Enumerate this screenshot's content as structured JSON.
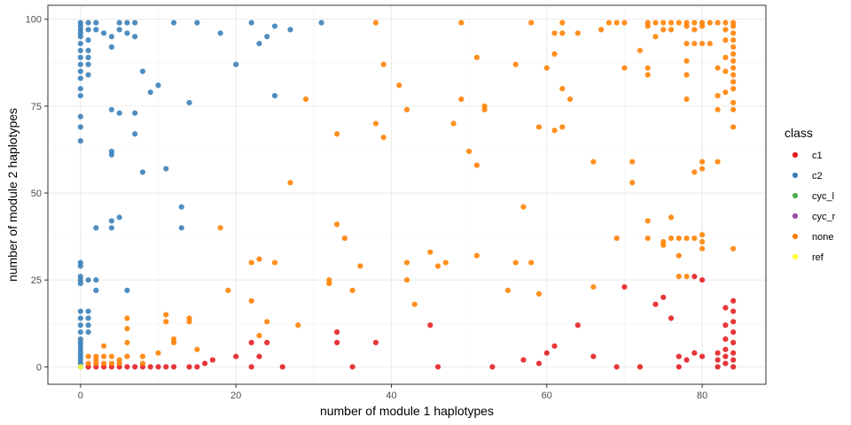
{
  "chart_data": {
    "type": "scatter",
    "xlabel": "number of module 1 haplotypes",
    "ylabel": "number of module 2 haplotypes",
    "xlim": [
      -4.2,
      88.2
    ],
    "ylim": [
      -5,
      104
    ],
    "x_ticks": [
      0,
      20,
      40,
      60,
      80
    ],
    "y_ticks": [
      0,
      25,
      50,
      75,
      100
    ],
    "x_tick_labels": [
      "0",
      "20",
      "40",
      "60",
      "80"
    ],
    "y_tick_labels": [
      "0",
      "25",
      "50",
      "75",
      "100"
    ],
    "grid": true,
    "legend": {
      "title": "class",
      "position": "right"
    },
    "series": [
      {
        "name": "c1",
        "color": "#E41A1C",
        "points": [
          [
            1,
            0
          ],
          [
            2,
            0
          ],
          [
            3,
            0
          ],
          [
            4,
            0
          ],
          [
            5,
            0
          ],
          [
            6,
            0
          ],
          [
            7,
            0
          ],
          [
            8,
            0
          ],
          [
            9,
            0
          ],
          [
            10,
            0
          ],
          [
            11,
            0
          ],
          [
            12,
            0
          ],
          [
            14,
            0
          ],
          [
            15,
            0
          ],
          [
            16,
            1
          ],
          [
            17,
            2
          ],
          [
            20,
            3
          ],
          [
            22,
            7
          ],
          [
            22,
            0
          ],
          [
            23,
            3
          ],
          [
            24,
            7
          ],
          [
            26,
            0
          ],
          [
            33,
            10
          ],
          [
            33,
            7
          ],
          [
            35,
            0
          ],
          [
            38,
            7
          ],
          [
            45,
            12
          ],
          [
            46,
            0
          ],
          [
            53,
            0
          ],
          [
            57,
            2
          ],
          [
            59,
            1
          ],
          [
            60,
            4
          ],
          [
            61,
            6
          ],
          [
            64,
            12
          ],
          [
            66,
            3
          ],
          [
            69,
            0
          ],
          [
            70,
            23
          ],
          [
            72,
            0
          ],
          [
            74,
            18
          ],
          [
            75,
            20
          ],
          [
            76,
            14
          ],
          [
            77,
            3
          ],
          [
            77,
            0
          ],
          [
            78,
            2
          ],
          [
            79,
            26
          ],
          [
            79,
            4
          ],
          [
            80,
            25
          ],
          [
            80,
            3
          ],
          [
            82,
            0
          ],
          [
            82,
            2
          ],
          [
            82,
            4
          ],
          [
            83,
            17
          ],
          [
            83,
            12
          ],
          [
            83,
            8
          ],
          [
            83,
            5
          ],
          [
            83,
            3
          ],
          [
            83,
            1
          ],
          [
            84,
            19
          ],
          [
            84,
            16
          ],
          [
            84,
            13
          ],
          [
            84,
            10
          ],
          [
            84,
            7
          ],
          [
            84,
            4
          ],
          [
            84,
            2
          ],
          [
            84,
            0
          ]
        ]
      },
      {
        "name": "c2",
        "color": "#377EB8",
        "points": [
          [
            0,
            99
          ],
          [
            0,
            98
          ],
          [
            0,
            97
          ],
          [
            0,
            96
          ],
          [
            0,
            95
          ],
          [
            0,
            93
          ],
          [
            0,
            91
          ],
          [
            0,
            89
          ],
          [
            0,
            87
          ],
          [
            0,
            85
          ],
          [
            0,
            83
          ],
          [
            0,
            80
          ],
          [
            0,
            78
          ],
          [
            0,
            72
          ],
          [
            0,
            69
          ],
          [
            0,
            65
          ],
          [
            1,
            99
          ],
          [
            1,
            97
          ],
          [
            1,
            94
          ],
          [
            1,
            91
          ],
          [
            1,
            89
          ],
          [
            1,
            87
          ],
          [
            1,
            84
          ],
          [
            2,
            99
          ],
          [
            2,
            97
          ],
          [
            3,
            96
          ],
          [
            4,
            95
          ],
          [
            4,
            92
          ],
          [
            5,
            99
          ],
          [
            5,
            97
          ],
          [
            6,
            99
          ],
          [
            6,
            96
          ],
          [
            7,
            99
          ],
          [
            7,
            95
          ],
          [
            8,
            85
          ],
          [
            9,
            79
          ],
          [
            10,
            81
          ],
          [
            12,
            99
          ],
          [
            15,
            99
          ],
          [
            18,
            96
          ],
          [
            20,
            87
          ],
          [
            22,
            99
          ],
          [
            23,
            93
          ],
          [
            24,
            95
          ],
          [
            25,
            98
          ],
          [
            25,
            78
          ],
          [
            27,
            97
          ],
          [
            31,
            99
          ],
          [
            4,
            74
          ],
          [
            5,
            73
          ],
          [
            7,
            73
          ],
          [
            7,
            67
          ],
          [
            4,
            62
          ],
          [
            4,
            61
          ],
          [
            8,
            56
          ],
          [
            11,
            57
          ],
          [
            14,
            76
          ],
          [
            13,
            46
          ],
          [
            13,
            40
          ],
          [
            5,
            43
          ],
          [
            4,
            42
          ],
          [
            4,
            40
          ],
          [
            2,
            40
          ],
          [
            0,
            30
          ],
          [
            0,
            29
          ],
          [
            0,
            26
          ],
          [
            0,
            25
          ],
          [
            0,
            24
          ],
          [
            1,
            25
          ],
          [
            2,
            25
          ],
          [
            2,
            22
          ],
          [
            6,
            22
          ],
          [
            0,
            16
          ],
          [
            1,
            16
          ],
          [
            0,
            14
          ],
          [
            1,
            14
          ],
          [
            0,
            12
          ],
          [
            1,
            12
          ],
          [
            0,
            10
          ],
          [
            1,
            10
          ],
          [
            0,
            8
          ],
          [
            0,
            7
          ],
          [
            0,
            6
          ],
          [
            0,
            5
          ],
          [
            0,
            4
          ],
          [
            0,
            3
          ],
          [
            0,
            2
          ],
          [
            0,
            1
          ],
          [
            0,
            0
          ]
        ]
      },
      {
        "name": "cyc_l",
        "color": "#4DAF4A",
        "points": []
      },
      {
        "name": "cyc_r",
        "color": "#984EA3",
        "points": []
      },
      {
        "name": "none",
        "color": "#FF7F00",
        "points": [
          [
            1,
            3
          ],
          [
            1,
            1
          ],
          [
            2,
            3
          ],
          [
            2,
            2
          ],
          [
            2,
            1
          ],
          [
            3,
            6
          ],
          [
            3,
            3
          ],
          [
            3,
            1
          ],
          [
            4,
            3
          ],
          [
            4,
            1
          ],
          [
            5,
            2
          ],
          [
            5,
            1
          ],
          [
            6,
            14
          ],
          [
            6,
            11
          ],
          [
            6,
            7
          ],
          [
            6,
            3
          ],
          [
            8,
            3
          ],
          [
            8,
            1
          ],
          [
            10,
            4
          ],
          [
            11,
            15
          ],
          [
            11,
            13
          ],
          [
            12,
            8
          ],
          [
            12,
            7
          ],
          [
            14,
            14
          ],
          [
            14,
            13
          ],
          [
            15,
            5
          ],
          [
            18,
            40
          ],
          [
            19,
            22
          ],
          [
            22,
            30
          ],
          [
            22,
            19
          ],
          [
            23,
            31
          ],
          [
            23,
            9
          ],
          [
            24,
            13
          ],
          [
            25,
            30
          ],
          [
            28,
            12
          ],
          [
            29,
            77
          ],
          [
            27,
            53
          ],
          [
            32,
            25
          ],
          [
            32,
            24
          ],
          [
            33,
            67
          ],
          [
            33,
            41
          ],
          [
            34,
            37
          ],
          [
            35,
            22
          ],
          [
            36,
            29
          ],
          [
            38,
            99
          ],
          [
            38,
            70
          ],
          [
            39,
            87
          ],
          [
            39,
            66
          ],
          [
            41,
            81
          ],
          [
            42,
            74
          ],
          [
            42,
            30
          ],
          [
            42,
            25
          ],
          [
            43,
            18
          ],
          [
            45,
            33
          ],
          [
            46,
            29
          ],
          [
            47,
            30
          ],
          [
            48,
            70
          ],
          [
            49,
            99
          ],
          [
            49,
            77
          ],
          [
            50,
            62
          ],
          [
            51,
            89
          ],
          [
            51,
            58
          ],
          [
            51,
            32
          ],
          [
            52,
            75
          ],
          [
            52,
            74
          ],
          [
            55,
            22
          ],
          [
            56,
            87
          ],
          [
            56,
            30
          ],
          [
            57,
            46
          ],
          [
            58,
            99
          ],
          [
            58,
            30
          ],
          [
            59,
            69
          ],
          [
            59,
            21
          ],
          [
            60,
            86
          ],
          [
            61,
            96
          ],
          [
            61,
            90
          ],
          [
            61,
            68
          ],
          [
            62,
            99
          ],
          [
            62,
            96
          ],
          [
            62,
            80
          ],
          [
            62,
            69
          ],
          [
            63,
            77
          ],
          [
            64,
            96
          ],
          [
            66,
            59
          ],
          [
            66,
            23
          ],
          [
            67,
            97
          ],
          [
            68,
            99
          ],
          [
            69,
            99
          ],
          [
            69,
            37
          ],
          [
            70,
            99
          ],
          [
            70,
            86
          ],
          [
            71,
            59
          ],
          [
            71,
            53
          ],
          [
            72,
            91
          ],
          [
            73,
            99
          ],
          [
            73,
            98
          ],
          [
            73,
            86
          ],
          [
            73,
            84
          ],
          [
            73,
            42
          ],
          [
            73,
            37
          ],
          [
            74,
            99
          ],
          [
            74,
            95
          ],
          [
            75,
            99
          ],
          [
            75,
            97
          ],
          [
            75,
            36
          ],
          [
            75,
            35
          ],
          [
            76,
            99
          ],
          [
            76,
            97
          ],
          [
            76,
            43
          ],
          [
            76,
            37
          ],
          [
            77,
            99
          ],
          [
            77,
            37
          ],
          [
            77,
            32
          ],
          [
            77,
            26
          ],
          [
            78,
            99
          ],
          [
            78,
            98
          ],
          [
            78,
            93
          ],
          [
            78,
            88
          ],
          [
            78,
            84
          ],
          [
            78,
            77
          ],
          [
            78,
            37
          ],
          [
            78,
            26
          ],
          [
            79,
            99
          ],
          [
            79,
            97
          ],
          [
            79,
            93
          ],
          [
            79,
            56
          ],
          [
            79,
            37
          ],
          [
            80,
            99
          ],
          [
            80,
            98
          ],
          [
            80,
            93
          ],
          [
            80,
            59
          ],
          [
            80,
            57
          ],
          [
            80,
            38
          ],
          [
            80,
            36
          ],
          [
            80,
            34
          ],
          [
            81,
            99
          ],
          [
            81,
            93
          ],
          [
            82,
            99
          ],
          [
            82,
            86
          ],
          [
            82,
            78
          ],
          [
            82,
            74
          ],
          [
            82,
            59
          ],
          [
            83,
            99
          ],
          [
            83,
            97
          ],
          [
            83,
            94
          ],
          [
            83,
            89
          ],
          [
            83,
            85
          ],
          [
            83,
            79
          ],
          [
            84,
            99
          ],
          [
            84,
            98
          ],
          [
            84,
            96
          ],
          [
            84,
            94
          ],
          [
            84,
            92
          ],
          [
            84,
            90
          ],
          [
            84,
            88
          ],
          [
            84,
            86
          ],
          [
            84,
            84
          ],
          [
            84,
            82
          ],
          [
            84,
            80
          ],
          [
            84,
            76
          ],
          [
            84,
            74
          ],
          [
            84,
            69
          ],
          [
            84,
            34
          ]
        ]
      },
      {
        "name": "ref",
        "color": "#FFFF33",
        "points": [
          [
            0,
            0
          ]
        ]
      }
    ]
  }
}
